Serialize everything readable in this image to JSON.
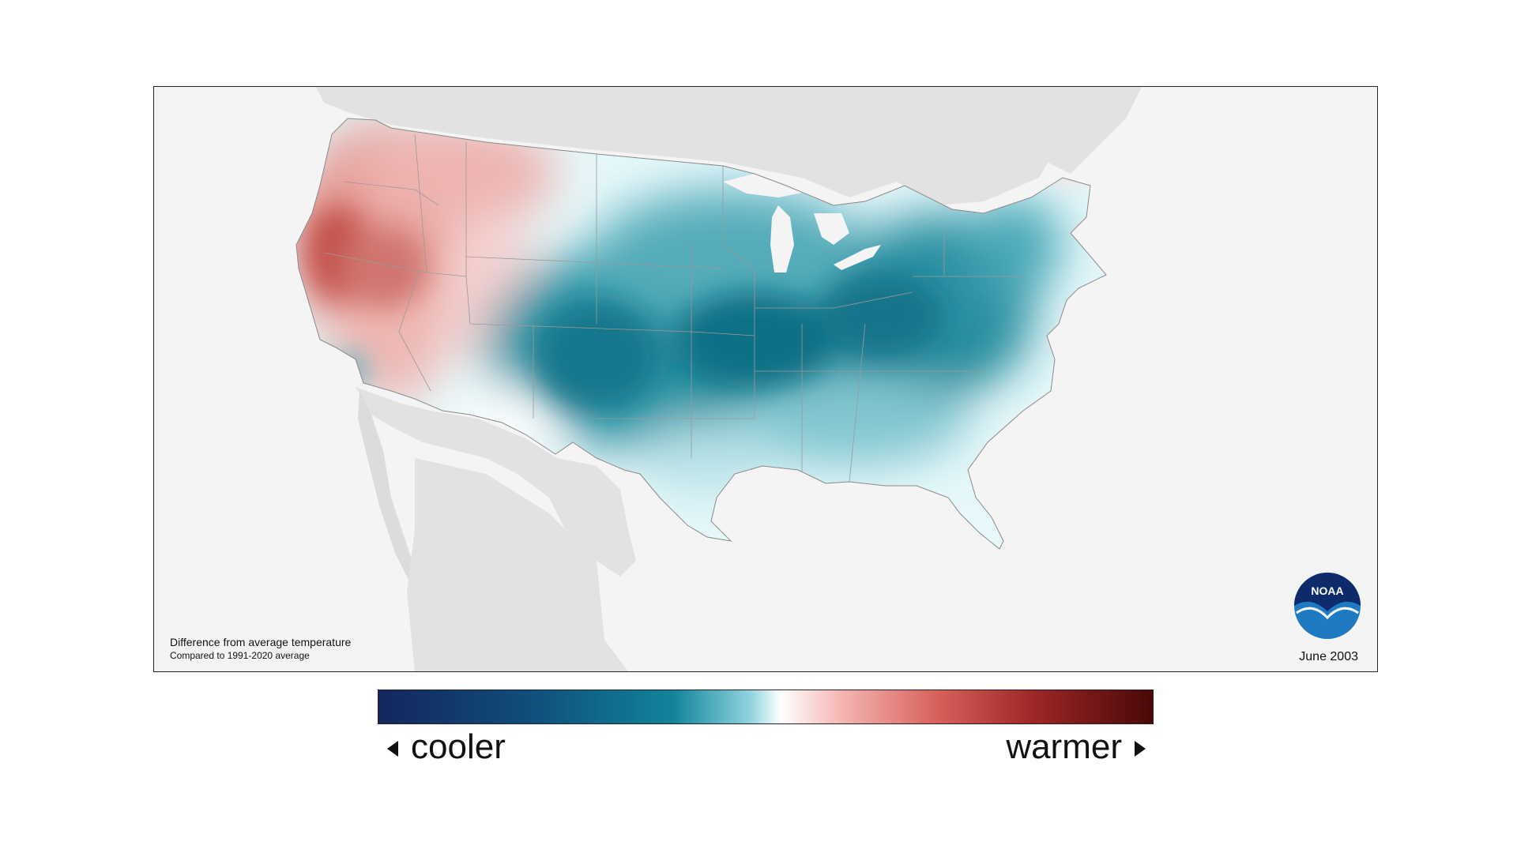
{
  "map": {
    "caption_title": "Difference from average temperature",
    "caption_subtitle": "Compared to 1991-2020 average",
    "date_label": "June 2003",
    "logo_text": "NOAA"
  },
  "legend": {
    "cooler_label": "cooler",
    "warmer_label": "warmer",
    "colors": [
      "#14255e",
      "#0f4f7b",
      "#11839a",
      "#8fd3de",
      "#ffffff",
      "#f4b4b1",
      "#d8615c",
      "#9b2525",
      "#4a0808"
    ]
  },
  "anomaly_regions": {
    "warm": "Pacific Northwest, California, Great Basin",
    "cool": "Central Plains, Midwest, Ohio Valley, Northeast"
  }
}
